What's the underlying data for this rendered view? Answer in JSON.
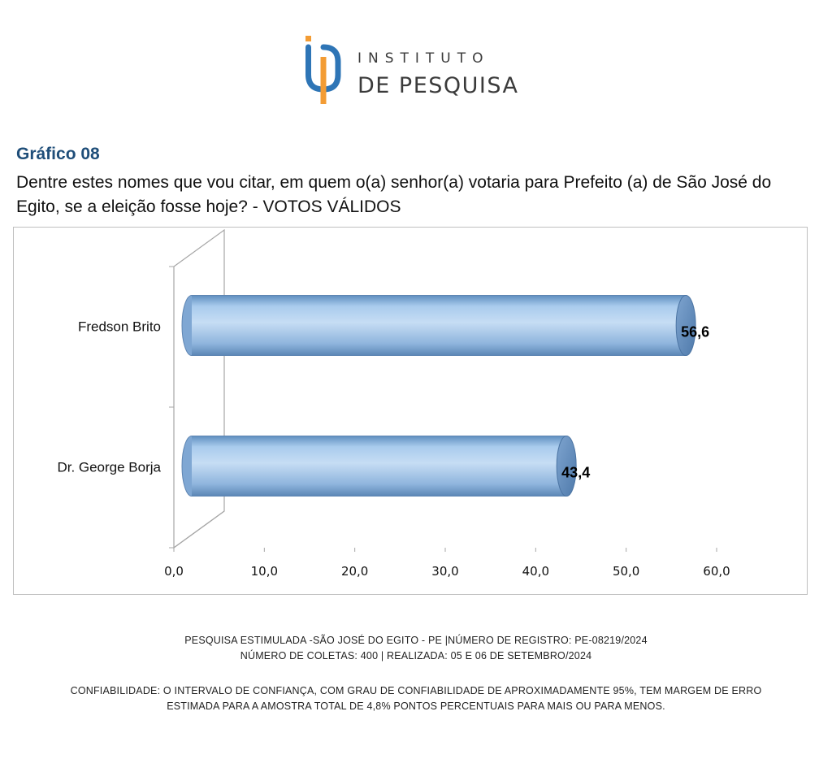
{
  "header": {
    "logo_line1": "INSTITUTO",
    "logo_line2": "DE PESQUISA",
    "colors": {
      "blue": "#2e75b6",
      "orange": "#f39c34",
      "text": "#3b3b3b"
    }
  },
  "chart_data": {
    "type": "bar",
    "orientation": "horizontal",
    "title": "Gráfico 08",
    "subtitle": "Dentre estes nomes que vou citar, em quem o(a) senhor(a) votaria para Prefeito (a) de São José do Egito, se a eleição fosse hoje? - VOTOS VÁLIDOS",
    "categories": [
      "Fredson Brito",
      "Dr. George Borja"
    ],
    "values": [
      56.6,
      43.4
    ],
    "value_labels": [
      "56,6",
      "43,4"
    ],
    "xlim": [
      0,
      60
    ],
    "x_ticks": [
      "0,0",
      "10,0",
      "20,0",
      "30,0",
      "40,0",
      "50,0",
      "60,0"
    ],
    "bar_color": "#9cc3e6",
    "grid": false,
    "style": "3d-cylinder"
  },
  "footer": {
    "line1": "PESQUISA ESTIMULADA -SÃO JOSÉ DO EGITO - PE |NÚMERO DE REGISTRO: PE-08219/2024",
    "line2": "NÚMERO DE COLETAS: 400 | REALIZADA: 05 E 06 DE SETEMBRO/2024",
    "line3": "CONFIABILIDADE: O INTERVALO DE CONFIANÇA, COM GRAU DE CONFIABILIDADE DE APROXIMADAMENTE 95%, TEM MARGEM DE ERRO",
    "line4": "ESTIMADA PARA A AMOSTRA TOTAL DE 4,8% PONTOS PERCENTUAIS PARA MAIS OU PARA MENOS."
  }
}
